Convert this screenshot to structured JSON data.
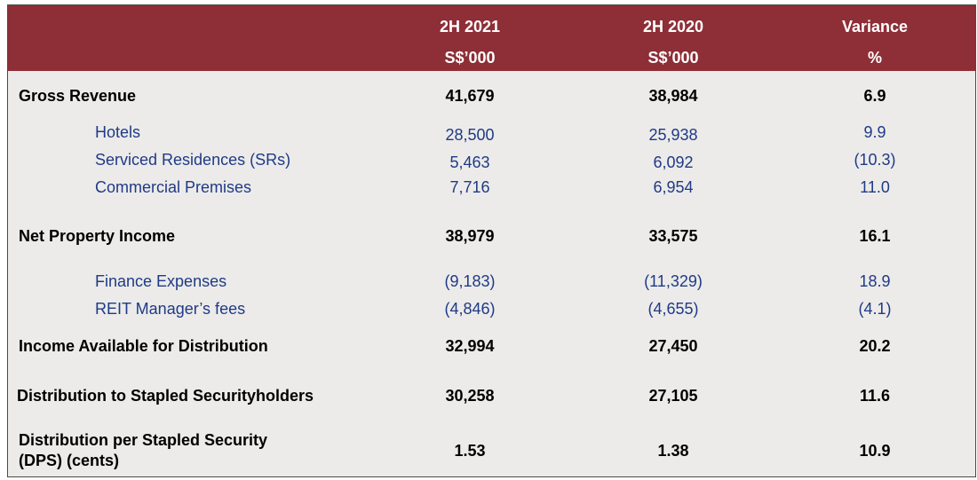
{
  "header": {
    "columns": [
      {
        "title": "2H 2021",
        "unit": "S$’000"
      },
      {
        "title": "2H 2020",
        "unit": "S$’000"
      },
      {
        "title": "Variance",
        "unit": "%"
      }
    ]
  },
  "rows": [
    {
      "label": "Gross Revenue",
      "v2021": "41,679",
      "v2020": "38,984",
      "variance": "6.9"
    },
    {
      "label": "Hotels",
      "v2021": "28,500",
      "v2020": "25,938",
      "variance": "9.9"
    },
    {
      "label": "Serviced Residences (SRs)",
      "v2021": "5,463",
      "v2020": "6,092",
      "variance": "(10.3)"
    },
    {
      "label": "Commercial Premises",
      "v2021": "7,716",
      "v2020": "6,954",
      "variance": "11.0"
    },
    {
      "label": "Net Property Income",
      "v2021": "38,979",
      "v2020": "33,575",
      "variance": "16.1"
    },
    {
      "label": "Finance Expenses",
      "v2021": "(9,183)",
      "v2020": "(11,329)",
      "variance": "18.9"
    },
    {
      "label": "REIT Manager’s fees",
      "v2021": "(4,846)",
      "v2020": "(4,655)",
      "variance": "(4.1)"
    },
    {
      "label": "Income Available for Distribution",
      "v2021": "32,994",
      "v2020": "27,450",
      "variance": "20.2"
    },
    {
      "label": "Distribution to Stapled Securityholders",
      "v2021": "30,258",
      "v2020": "27,105",
      "variance": "11.6"
    },
    {
      "label_line1": "Distribution per Stapled Security",
      "label_line2": "(DPS) (cents)",
      "v2021": "1.53",
      "v2020": "1.38",
      "variance": "10.9"
    }
  ]
}
